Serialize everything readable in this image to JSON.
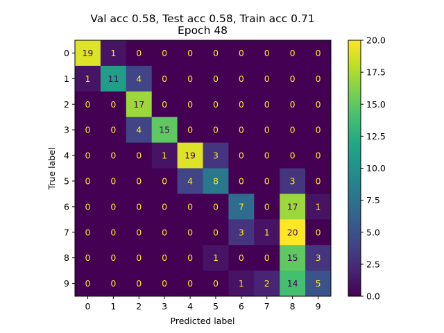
{
  "chart_data": {
    "type": "heatmap",
    "title_line1": "Val acc 0.58, Test acc 0.58, Train acc 0.71",
    "title_line2": "Epoch 48",
    "xlabel": "Predicted label",
    "ylabel": "True label",
    "x_categories": [
      "0",
      "1",
      "2",
      "3",
      "4",
      "5",
      "6",
      "7",
      "8",
      "9"
    ],
    "y_categories": [
      "0",
      "1",
      "2",
      "3",
      "4",
      "5",
      "6",
      "7",
      "8",
      "9"
    ],
    "matrix": [
      [
        19,
        1,
        0,
        0,
        0,
        0,
        0,
        0,
        0,
        0
      ],
      [
        1,
        11,
        4,
        0,
        0,
        0,
        0,
        0,
        0,
        0
      ],
      [
        0,
        0,
        17,
        0,
        0,
        0,
        0,
        0,
        0,
        0
      ],
      [
        0,
        0,
        4,
        15,
        0,
        0,
        0,
        0,
        0,
        0
      ],
      [
        0,
        0,
        0,
        1,
        19,
        3,
        0,
        0,
        0,
        0
      ],
      [
        0,
        0,
        0,
        0,
        4,
        8,
        0,
        0,
        3,
        0
      ],
      [
        0,
        0,
        0,
        0,
        0,
        0,
        7,
        0,
        17,
        1
      ],
      [
        0,
        0,
        0,
        0,
        0,
        0,
        3,
        1,
        20,
        0
      ],
      [
        0,
        0,
        0,
        0,
        0,
        1,
        0,
        0,
        15,
        3
      ],
      [
        0,
        0,
        0,
        0,
        0,
        0,
        1,
        2,
        14,
        5
      ]
    ],
    "colormap": "viridis",
    "value_range": [
      0,
      20
    ],
    "colorbar_ticks": [
      "0.0",
      "2.5",
      "5.0",
      "7.5",
      "10.0",
      "12.5",
      "15.0",
      "17.5",
      "20.0"
    ],
    "grid": false
  }
}
